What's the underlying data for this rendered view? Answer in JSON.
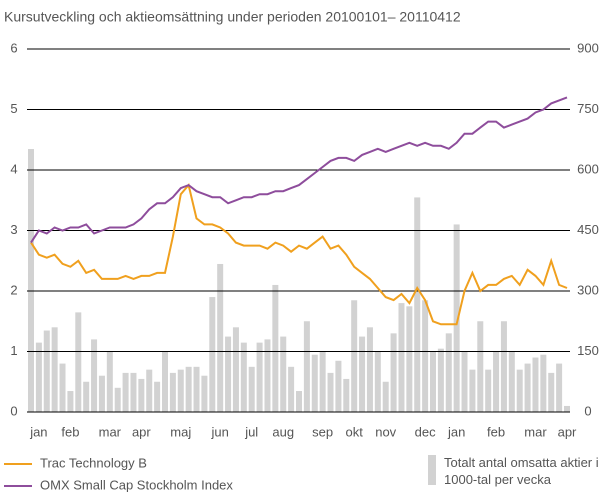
{
  "chart_data": {
    "type": "combo",
    "title": "Kursutveckling och aktieomsättning under perioden 20100101– 20110412",
    "categories": [
      null,
      "jan",
      null,
      null,
      null,
      "feb",
      null,
      null,
      null,
      null,
      "mar",
      null,
      null,
      null,
      "apr",
      null,
      null,
      null,
      null,
      "maj",
      null,
      null,
      null,
      null,
      "jun",
      null,
      null,
      null,
      "jul",
      null,
      null,
      null,
      "aug",
      null,
      null,
      null,
      null,
      "sep",
      null,
      null,
      null,
      "okt",
      null,
      null,
      null,
      "nov",
      null,
      null,
      null,
      null,
      "dec",
      null,
      null,
      null,
      "jan",
      null,
      null,
      null,
      null,
      "feb",
      null,
      null,
      null,
      null,
      "mar",
      null,
      null,
      null,
      "apr"
    ],
    "ylim": [
      0,
      6
    ],
    "yticks": [
      0,
      1,
      2,
      3,
      4,
      5,
      6
    ],
    "y2lim": [
      0,
      900
    ],
    "y2ticks": [
      0,
      150,
      300,
      450,
      600,
      750,
      900
    ],
    "grid": true,
    "series": [
      {
        "name": "Totalt antal omsatta aktier i 1000-tal per vecka",
        "type": "bar",
        "axis": "y2",
        "color": "#d2d2d2",
        "values": [
          652,
          172,
          202,
          210,
          120,
          52,
          247,
          75,
          180,
          90,
          150,
          60,
          97,
          97,
          82,
          105,
          75,
          150,
          97,
          105,
          112,
          112,
          90,
          285,
          367,
          187,
          210,
          172,
          112,
          172,
          180,
          315,
          187,
          112,
          52,
          225,
          142,
          150,
          97,
          127,
          82,
          277,
          187,
          210,
          150,
          75,
          195,
          270,
          262,
          532,
          277,
          150,
          157,
          195,
          465,
          150,
          105,
          225,
          105,
          150,
          225,
          150,
          105,
          120,
          135,
          142,
          97,
          120,
          15
        ]
      },
      {
        "name": "Trac Technology B",
        "type": "line",
        "color": "#f0a01e",
        "values": [
          2.8,
          2.6,
          2.55,
          2.6,
          2.45,
          2.4,
          2.5,
          2.3,
          2.35,
          2.2,
          2.2,
          2.2,
          2.25,
          2.2,
          2.25,
          2.25,
          2.3,
          2.3,
          2.9,
          3.6,
          3.75,
          3.2,
          3.1,
          3.1,
          3.05,
          2.95,
          2.8,
          2.75,
          2.75,
          2.75,
          2.7,
          2.8,
          2.75,
          2.65,
          2.75,
          2.7,
          2.8,
          2.9,
          2.7,
          2.75,
          2.6,
          2.4,
          2.3,
          2.2,
          2.05,
          1.9,
          1.85,
          1.95,
          1.8,
          2.05,
          1.85,
          1.5,
          1.45,
          1.45,
          1.45,
          2.0,
          2.3,
          2.0,
          2.1,
          2.1,
          2.2,
          2.25,
          2.1,
          2.35,
          2.25,
          2.1,
          2.5,
          2.1,
          2.05
        ]
      },
      {
        "name": "OMX Small Cap Stockholm Index",
        "type": "line",
        "color": "#8e4d9c",
        "values": [
          2.8,
          3.0,
          2.95,
          3.05,
          3.0,
          3.05,
          3.05,
          3.1,
          2.95,
          3.0,
          3.05,
          3.05,
          3.05,
          3.1,
          3.2,
          3.35,
          3.45,
          3.45,
          3.55,
          3.7,
          3.75,
          3.65,
          3.6,
          3.55,
          3.55,
          3.45,
          3.5,
          3.55,
          3.55,
          3.6,
          3.6,
          3.65,
          3.65,
          3.7,
          3.75,
          3.85,
          3.95,
          4.05,
          4.15,
          4.2,
          4.2,
          4.15,
          4.25,
          4.3,
          4.35,
          4.3,
          4.35,
          4.4,
          4.45,
          4.4,
          4.45,
          4.4,
          4.4,
          4.35,
          4.45,
          4.6,
          4.6,
          4.7,
          4.8,
          4.8,
          4.7,
          4.75,
          4.8,
          4.85,
          4.95,
          5.0,
          5.1,
          5.15,
          5.2
        ]
      }
    ]
  }
}
